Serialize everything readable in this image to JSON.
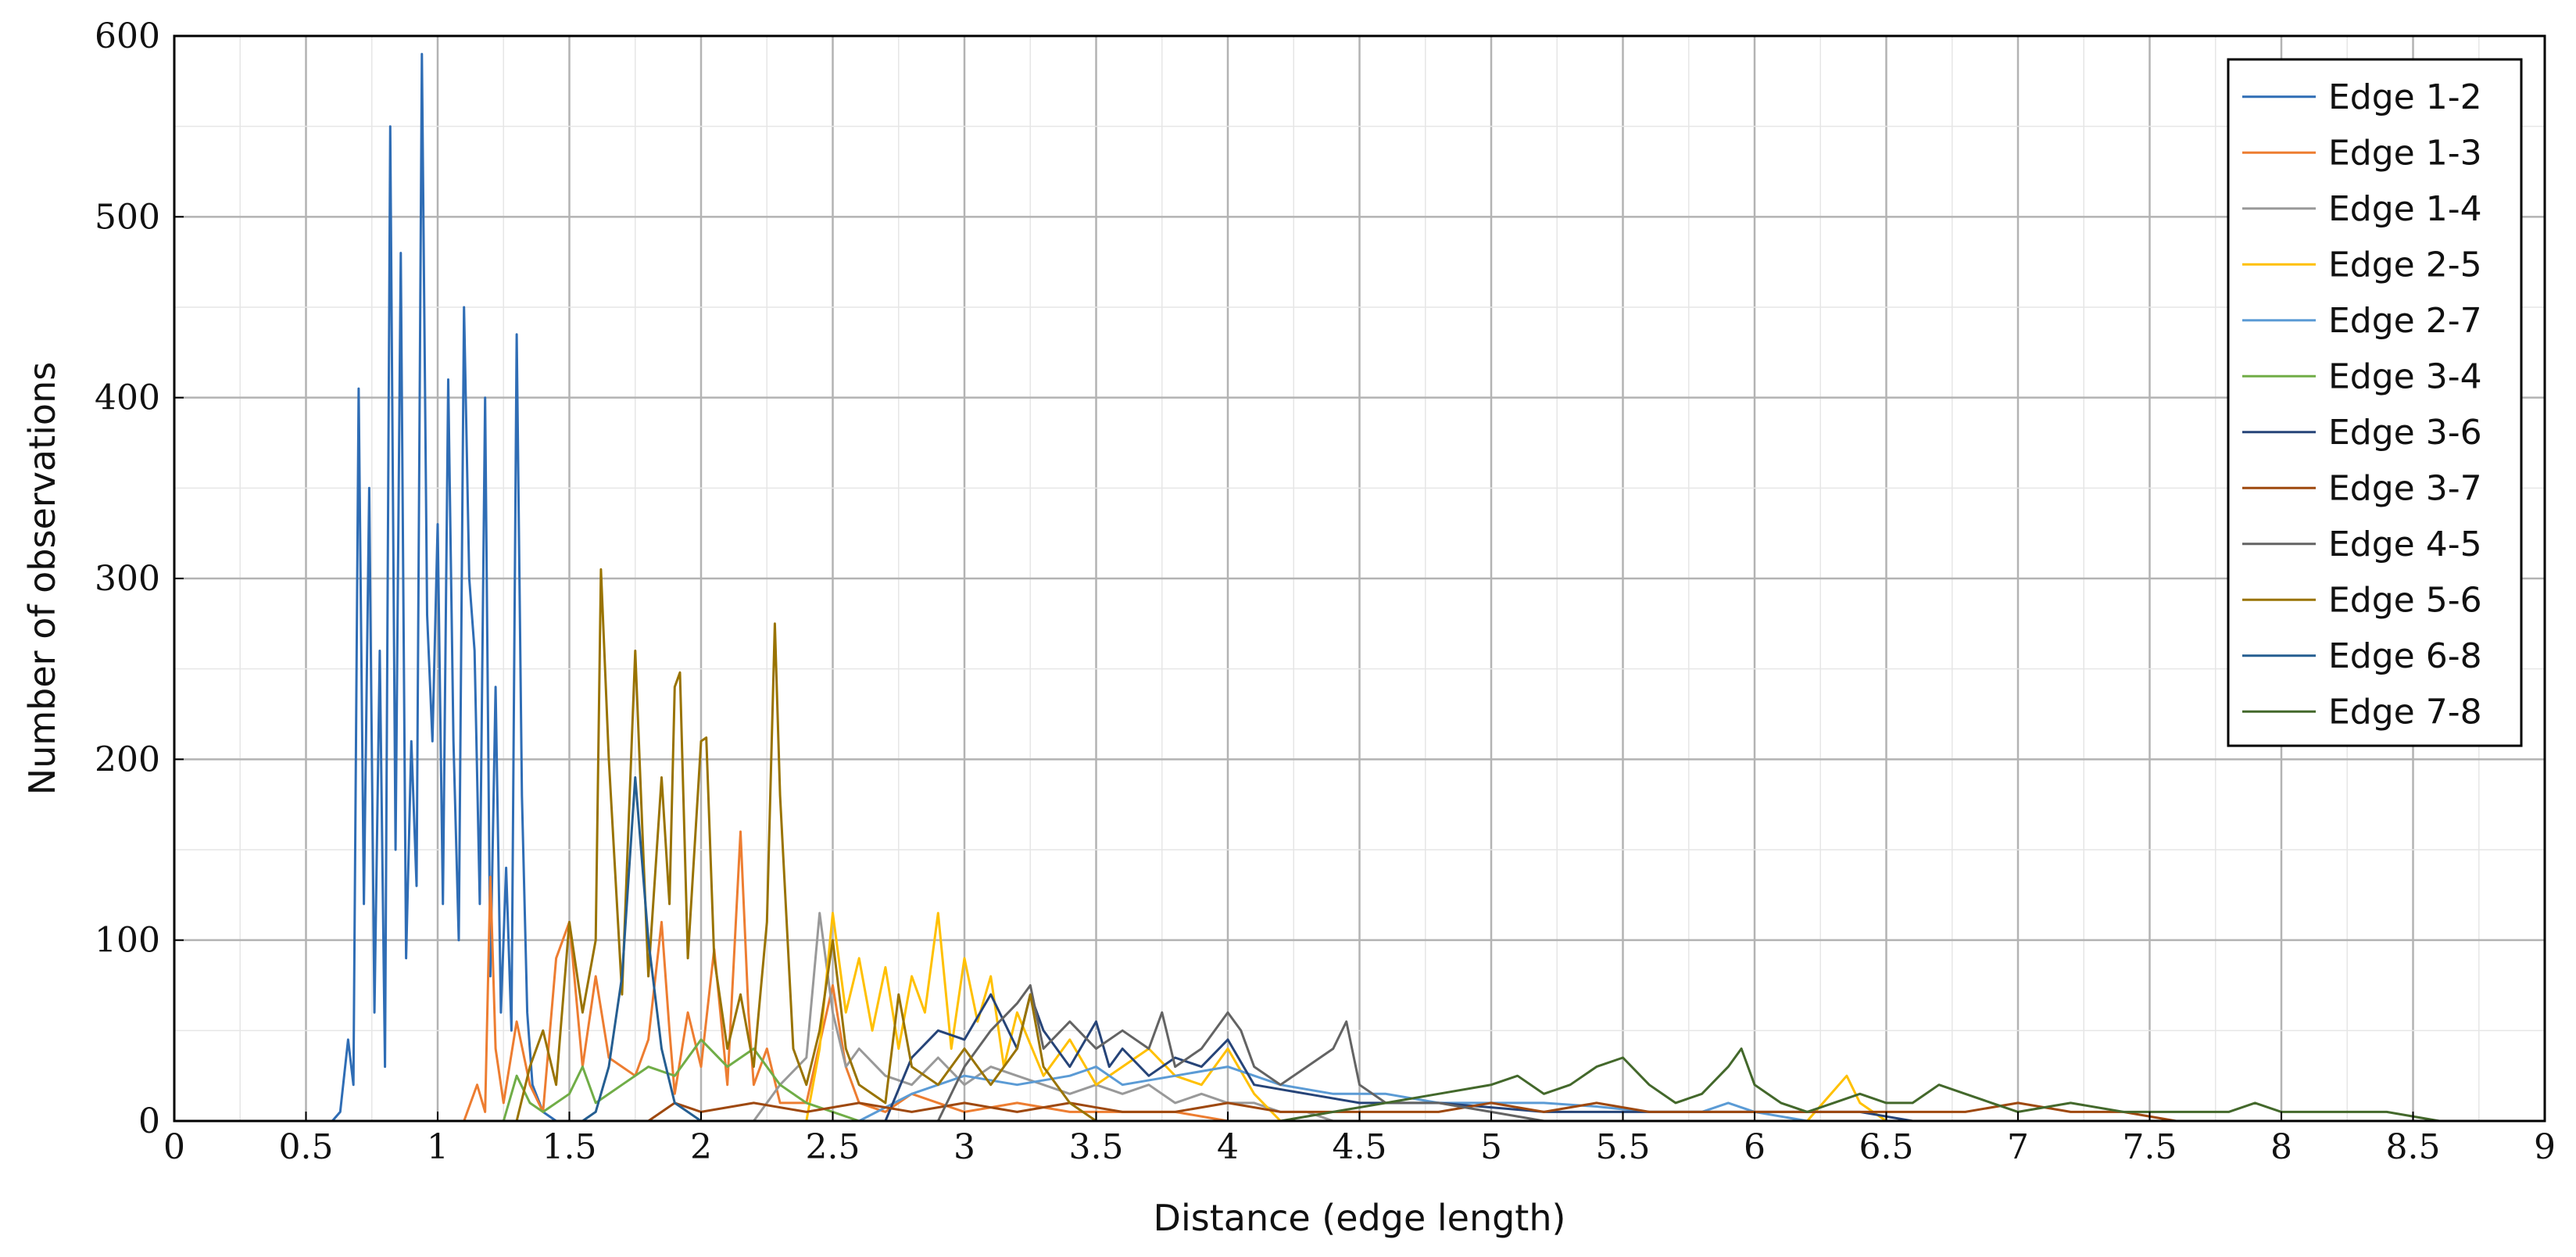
{
  "chart_data": {
    "type": "line",
    "title": "",
    "xlabel": "Distance (edge length)",
    "ylabel": "Number of observations",
    "xlim": [
      0,
      9
    ],
    "ylim": [
      0,
      600
    ],
    "x_ticks": [
      "0",
      "0.5",
      "1",
      "1.5",
      "2",
      "2.5",
      "3",
      "3.5",
      "4",
      "4.5",
      "5",
      "5.5",
      "6",
      "6.5",
      "7",
      "7.5",
      "8",
      "8.5",
      "9"
    ],
    "y_ticks": [
      "0",
      "100",
      "200",
      "300",
      "400",
      "500",
      "600"
    ],
    "grid": "major and minor",
    "legend_position": "top-right",
    "series": [
      {
        "name": "Edge 1-2",
        "color": "#2f6db5",
        "x": [
          0.6,
          0.63,
          0.66,
          0.68,
          0.7,
          0.72,
          0.74,
          0.76,
          0.78,
          0.8,
          0.82,
          0.84,
          0.86,
          0.88,
          0.9,
          0.92,
          0.94,
          0.96,
          0.98,
          1.0,
          1.02,
          1.04,
          1.06,
          1.08,
          1.1,
          1.12,
          1.14,
          1.16,
          1.18,
          1.2,
          1.22,
          1.24,
          1.26,
          1.28,
          1.3,
          1.32,
          1.34,
          1.36,
          1.4,
          1.45
        ],
        "y": [
          0,
          5,
          45,
          20,
          405,
          120,
          350,
          60,
          260,
          30,
          550,
          150,
          480,
          90,
          210,
          130,
          590,
          280,
          210,
          330,
          120,
          410,
          210,
          100,
          450,
          300,
          260,
          120,
          400,
          80,
          240,
          60,
          140,
          50,
          435,
          180,
          60,
          20,
          5,
          0
        ]
      },
      {
        "name": "Edge 1-3",
        "color": "#ed7d31",
        "x": [
          1.1,
          1.15,
          1.18,
          1.2,
          1.22,
          1.25,
          1.3,
          1.35,
          1.4,
          1.45,
          1.5,
          1.55,
          1.6,
          1.65,
          1.7,
          1.75,
          1.8,
          1.85,
          1.88,
          1.9,
          1.95,
          2.0,
          2.05,
          2.1,
          2.15,
          2.18,
          2.2,
          2.25,
          2.3,
          2.4,
          2.5,
          2.55,
          2.6,
          2.7,
          2.8,
          2.9,
          3.0,
          3.2,
          3.4,
          3.6,
          3.8,
          4.0
        ],
        "y": [
          0,
          20,
          5,
          135,
          40,
          10,
          55,
          20,
          5,
          90,
          110,
          30,
          80,
          35,
          30,
          25,
          45,
          110,
          50,
          15,
          60,
          30,
          95,
          20,
          160,
          60,
          20,
          40,
          10,
          10,
          75,
          30,
          10,
          5,
          15,
          10,
          5,
          10,
          5,
          5,
          5,
          0
        ]
      },
      {
        "name": "Edge 1-4",
        "color": "#999999",
        "x": [
          2.2,
          2.3,
          2.4,
          2.45,
          2.5,
          2.55,
          2.6,
          2.7,
          2.8,
          2.9,
          3.0,
          3.1,
          3.2,
          3.3,
          3.4,
          3.5,
          3.6,
          3.7,
          3.8,
          3.9,
          4.0,
          4.1,
          4.2,
          4.3,
          4.4
        ],
        "y": [
          0,
          20,
          35,
          115,
          60,
          30,
          40,
          25,
          20,
          35,
          20,
          30,
          25,
          20,
          15,
          20,
          15,
          20,
          10,
          15,
          10,
          10,
          5,
          5,
          0
        ]
      },
      {
        "name": "Edge 2-5",
        "color": "#ffc000",
        "x": [
          2.4,
          2.45,
          2.5,
          2.55,
          2.6,
          2.65,
          2.7,
          2.75,
          2.8,
          2.85,
          2.9,
          2.95,
          3.0,
          3.05,
          3.1,
          3.15,
          3.2,
          3.3,
          3.4,
          3.5,
          3.6,
          3.7,
          3.8,
          3.9,
          4.0,
          4.1,
          4.2,
          6.2,
          6.35,
          6.4,
          6.5
        ],
        "y": [
          0,
          40,
          115,
          60,
          90,
          50,
          85,
          40,
          80,
          60,
          115,
          40,
          90,
          55,
          80,
          30,
          60,
          25,
          45,
          20,
          30,
          40,
          25,
          20,
          40,
          15,
          0,
          0,
          25,
          10,
          0
        ]
      },
      {
        "name": "Edge 2-7",
        "color": "#5b9bd5",
        "x": [
          2.6,
          2.8,
          3.0,
          3.2,
          3.4,
          3.5,
          3.6,
          3.8,
          4.0,
          4.2,
          4.4,
          4.6,
          4.8,
          5.0,
          5.2,
          5.4,
          5.6,
          5.8,
          5.9,
          6.0,
          6.2
        ],
        "y": [
          0,
          15,
          25,
          20,
          25,
          30,
          20,
          25,
          30,
          20,
          15,
          15,
          10,
          10,
          10,
          8,
          5,
          5,
          10,
          5,
          0
        ]
      },
      {
        "name": "Edge 3-4",
        "color": "#70ad47",
        "x": [
          1.25,
          1.3,
          1.35,
          1.4,
          1.5,
          1.55,
          1.6,
          1.7,
          1.8,
          1.9,
          2.0,
          2.1,
          2.2,
          2.3,
          2.4,
          2.5,
          2.6
        ],
        "y": [
          0,
          25,
          10,
          5,
          15,
          30,
          10,
          20,
          30,
          25,
          45,
          30,
          40,
          20,
          10,
          5,
          0
        ]
      },
      {
        "name": "Edge 3-6",
        "color": "#264478",
        "x": [
          2.7,
          2.8,
          2.9,
          3.0,
          3.1,
          3.2,
          3.25,
          3.3,
          3.4,
          3.5,
          3.55,
          3.6,
          3.7,
          3.8,
          3.9,
          4.0,
          4.1,
          4.3,
          4.5,
          4.8,
          5.2,
          5.6,
          6.0,
          6.4,
          6.6
        ],
        "y": [
          0,
          35,
          50,
          45,
          70,
          40,
          70,
          50,
          30,
          55,
          30,
          40,
          25,
          35,
          30,
          45,
          20,
          15,
          10,
          10,
          5,
          5,
          5,
          5,
          0
        ]
      },
      {
        "name": "Edge 3-7",
        "color": "#9e480e",
        "x": [
          1.8,
          1.9,
          2.0,
          2.2,
          2.4,
          2.6,
          2.8,
          3.0,
          3.2,
          3.4,
          3.6,
          3.8,
          4.0,
          4.2,
          4.4,
          4.6,
          4.8,
          5.0,
          5.2,
          5.4,
          5.6,
          5.8,
          6.0,
          6.4,
          6.8,
          7.0,
          7.2,
          7.4,
          7.6
        ],
        "y": [
          0,
          10,
          5,
          10,
          5,
          10,
          5,
          10,
          5,
          10,
          5,
          5,
          10,
          5,
          5,
          5,
          5,
          10,
          5,
          10,
          5,
          5,
          5,
          5,
          5,
          10,
          5,
          5,
          0
        ]
      },
      {
        "name": "Edge 4-5",
        "color": "#636363",
        "x": [
          2.9,
          3.0,
          3.1,
          3.2,
          3.25,
          3.3,
          3.4,
          3.5,
          3.6,
          3.7,
          3.75,
          3.8,
          3.9,
          4.0,
          4.05,
          4.1,
          4.2,
          4.3,
          4.4,
          4.45,
          4.5,
          4.6,
          4.8,
          5.0,
          5.2
        ],
        "y": [
          0,
          30,
          50,
          65,
          75,
          40,
          55,
          40,
          50,
          40,
          60,
          30,
          40,
          60,
          50,
          30,
          20,
          30,
          40,
          55,
          20,
          10,
          10,
          5,
          0
        ]
      },
      {
        "name": "Edge 5-6",
        "color": "#997300",
        "x": [
          1.3,
          1.35,
          1.4,
          1.45,
          1.5,
          1.55,
          1.6,
          1.62,
          1.65,
          1.7,
          1.75,
          1.78,
          1.8,
          1.85,
          1.88,
          1.9,
          1.92,
          1.95,
          2.0,
          2.02,
          2.05,
          2.1,
          2.15,
          2.2,
          2.25,
          2.28,
          2.3,
          2.35,
          2.4,
          2.45,
          2.5,
          2.55,
          2.6,
          2.7,
          2.75,
          2.8,
          2.9,
          3.0,
          3.1,
          3.2,
          3.25,
          3.3,
          3.4,
          3.5
        ],
        "y": [
          0,
          30,
          50,
          20,
          110,
          60,
          100,
          305,
          200,
          70,
          260,
          150,
          80,
          190,
          120,
          240,
          248,
          90,
          210,
          212,
          90,
          40,
          70,
          30,
          110,
          275,
          180,
          40,
          20,
          50,
          100,
          40,
          20,
          10,
          70,
          30,
          20,
          40,
          20,
          40,
          70,
          30,
          10,
          0
        ]
      },
      {
        "name": "Edge 6-8",
        "color": "#255e91",
        "x": [
          1.55,
          1.6,
          1.65,
          1.7,
          1.75,
          1.8,
          1.85,
          1.9,
          2.0
        ],
        "y": [
          0,
          5,
          30,
          80,
          190,
          100,
          40,
          10,
          0
        ]
      },
      {
        "name": "Edge 7-8",
        "color": "#43682b",
        "x": [
          4.2,
          4.4,
          4.6,
          4.8,
          5.0,
          5.1,
          5.2,
          5.3,
          5.4,
          5.5,
          5.6,
          5.7,
          5.8,
          5.9,
          5.95,
          6.0,
          6.1,
          6.2,
          6.3,
          6.4,
          6.5,
          6.6,
          6.7,
          6.8,
          6.9,
          7.0,
          7.2,
          7.4,
          7.6,
          7.8,
          7.9,
          8.0,
          8.2,
          8.4,
          8.6
        ],
        "y": [
          0,
          5,
          10,
          15,
          20,
          25,
          15,
          20,
          30,
          35,
          20,
          10,
          15,
          30,
          40,
          20,
          10,
          5,
          10,
          15,
          10,
          10,
          20,
          15,
          10,
          5,
          10,
          5,
          5,
          5,
          10,
          5,
          5,
          5,
          0
        ]
      }
    ]
  }
}
